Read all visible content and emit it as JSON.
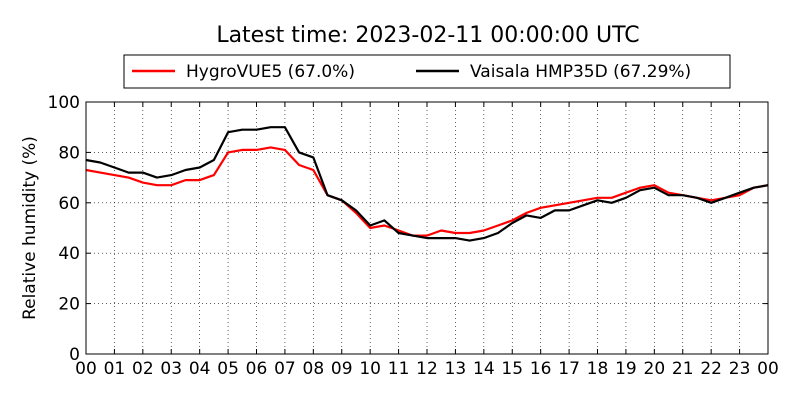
{
  "chart_data": {
    "type": "line",
    "title": "Latest time: 2023-02-11 00:00:00 UTC",
    "xlabel": "",
    "ylabel": "Relative humidity (%)",
    "xlim": [
      0,
      24
    ],
    "ylim": [
      0,
      100
    ],
    "grid": true,
    "legend_position": "top",
    "x_tick_labels": [
      "00",
      "01",
      "02",
      "03",
      "04",
      "05",
      "06",
      "07",
      "08",
      "09",
      "10",
      "11",
      "12",
      "13",
      "14",
      "15",
      "16",
      "17",
      "18",
      "19",
      "20",
      "21",
      "22",
      "23",
      "00"
    ],
    "y_tick_labels": [
      "0",
      "20",
      "40",
      "60",
      "80",
      "100"
    ],
    "x": [
      0,
      0.5,
      1,
      1.5,
      2,
      2.5,
      3,
      3.5,
      4,
      4.5,
      5,
      5.5,
      6,
      6.5,
      7,
      7.5,
      8,
      8.5,
      9,
      9.5,
      10,
      10.5,
      11,
      11.5,
      12,
      12.5,
      13,
      13.5,
      14,
      14.5,
      15,
      15.5,
      16,
      16.5,
      17,
      17.5,
      18,
      18.5,
      19,
      19.5,
      20,
      20.5,
      21,
      21.5,
      22,
      22.5,
      23,
      23.5,
      24
    ],
    "series": [
      {
        "name": "HygroVUE5 (67.0%)",
        "color": "#ff0000",
        "values": [
          73,
          72,
          71,
          70,
          68,
          67,
          67,
          69,
          69,
          71,
          80,
          81,
          81,
          82,
          81,
          75,
          73,
          63,
          61,
          56,
          50,
          51,
          49,
          47,
          47,
          49,
          48,
          48,
          49,
          51,
          53,
          56,
          58,
          59,
          60,
          61,
          62,
          62,
          64,
          66,
          67,
          64,
          63,
          62,
          61,
          62,
          63,
          66,
          67
        ]
      },
      {
        "name": "Vaisala HMP35D (67.29%)",
        "color": "#000000",
        "values": [
          77,
          76,
          74,
          72,
          72,
          70,
          71,
          73,
          74,
          77,
          88,
          89,
          89,
          90,
          90,
          80,
          78,
          63,
          61,
          57,
          51,
          53,
          48,
          47,
          46,
          46,
          46,
          45,
          46,
          48,
          52,
          55,
          54,
          57,
          57,
          59,
          61,
          60,
          62,
          65,
          66,
          63,
          63,
          62,
          60,
          62,
          64,
          66,
          67
        ]
      }
    ]
  }
}
